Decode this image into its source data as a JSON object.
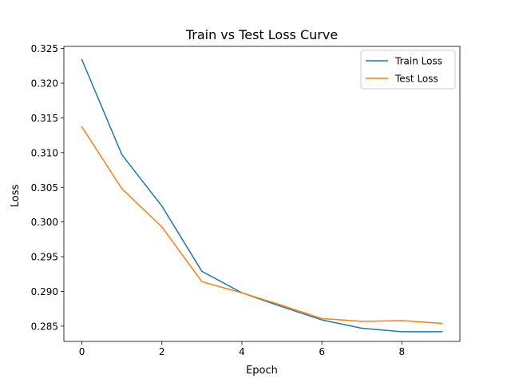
{
  "chart_data": {
    "type": "line",
    "title": "Train vs Test Loss Curve",
    "xlabel": "Epoch",
    "ylabel": "Loss",
    "x": [
      0,
      1,
      2,
      3,
      4,
      5,
      6,
      7,
      8,
      9
    ],
    "xlim": [
      -0.45,
      9.45
    ],
    "ylim": [
      0.2828,
      0.3253
    ],
    "xticks": [
      0,
      2,
      4,
      6,
      8
    ],
    "xtick_labels": [
      "0",
      "2",
      "4",
      "6",
      "8"
    ],
    "yticks": [
      0.285,
      0.29,
      0.295,
      0.3,
      0.305,
      0.31,
      0.315,
      0.32,
      0.325
    ],
    "ytick_labels": [
      "0.285",
      "0.290",
      "0.295",
      "0.300",
      "0.305",
      "0.310",
      "0.315",
      "0.320",
      "0.325"
    ],
    "grid": false,
    "legend_position": "top-right",
    "series": [
      {
        "name": "Train Loss",
        "color": "#1f77b4",
        "values": [
          0.3234,
          0.3097,
          0.3023,
          0.2929,
          0.2898,
          0.2878,
          0.2859,
          0.2847,
          0.2842,
          0.2842
        ]
      },
      {
        "name": "Test Loss",
        "color": "#ff7f0e",
        "values": [
          0.3137,
          0.3048,
          0.2993,
          0.2914,
          0.2898,
          0.288,
          0.2861,
          0.2857,
          0.2858,
          0.2854
        ]
      }
    ]
  }
}
